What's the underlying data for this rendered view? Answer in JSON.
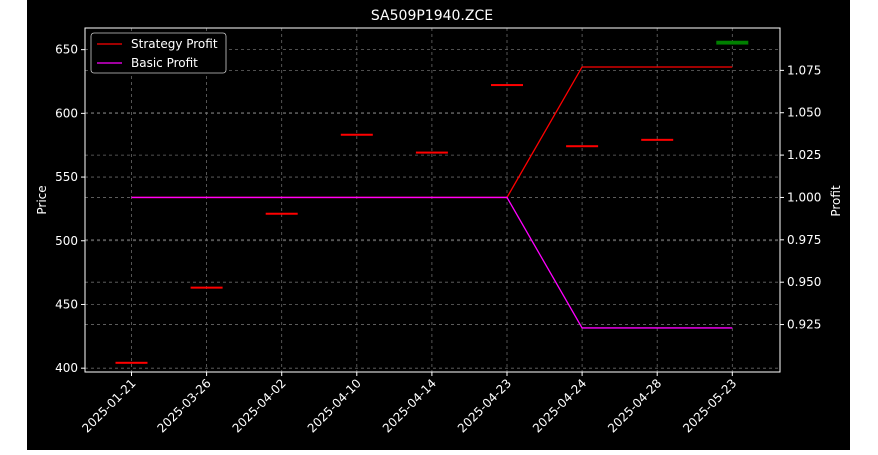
{
  "chart_data": {
    "type": "candlestick",
    "title": "SA509P1940.ZCE",
    "ylabel_left": "Price",
    "ylabel_right": "Profit",
    "categories": [
      "2025-01-21",
      "2025-03-26",
      "2025-04-02",
      "2025-04-10",
      "2025-04-14",
      "2025-04-23",
      "2025-04-24",
      "2025-04-28",
      "2025-05-23"
    ],
    "ylim_left": [
      397,
      667
    ],
    "ylim_right": [
      0.897,
      1.1
    ],
    "yticks_left": [
      400,
      450,
      500,
      550,
      600,
      650
    ],
    "yticks_right": [
      0.925,
      0.95,
      0.975,
      1.0,
      1.025,
      1.05,
      1.075
    ],
    "grid": true,
    "legend_position": "top-left",
    "candles": [
      {
        "x": "2025-01-21",
        "open": 405,
        "close": 405,
        "color": "#ff0000"
      },
      {
        "x": "2025-03-26",
        "open": 464,
        "close": 464,
        "color": "#ff0000"
      },
      {
        "x": "2025-04-02",
        "open": 522,
        "close": 522,
        "color": "#ff0000"
      },
      {
        "x": "2025-04-10",
        "open": 584,
        "close": 584,
        "color": "#ff0000"
      },
      {
        "x": "2025-04-14",
        "open": 570,
        "close": 570,
        "color": "#ff0000"
      },
      {
        "x": "2025-04-23",
        "open": 623,
        "close": 623,
        "color": "#ff0000"
      },
      {
        "x": "2025-04-24",
        "open": 575,
        "close": 575,
        "color": "#ff0000"
      },
      {
        "x": "2025-04-28",
        "open": 580,
        "close": 580,
        "color": "#ff0000"
      },
      {
        "x": "2025-05-23",
        "open": 654,
        "close": 657,
        "color": "#008000"
      }
    ],
    "series": [
      {
        "name": "Strategy Profit",
        "color": "#ff0000",
        "axis": "right",
        "values": [
          1.0,
          1.0,
          1.0,
          1.0,
          1.0,
          1.0,
          1.077,
          1.077,
          1.077
        ]
      },
      {
        "name": "Basic Profit",
        "color": "#ff00ff",
        "axis": "right",
        "values": [
          1.0,
          1.0,
          1.0,
          1.0,
          1.0,
          1.0,
          0.923,
          0.923,
          0.923
        ]
      }
    ]
  }
}
